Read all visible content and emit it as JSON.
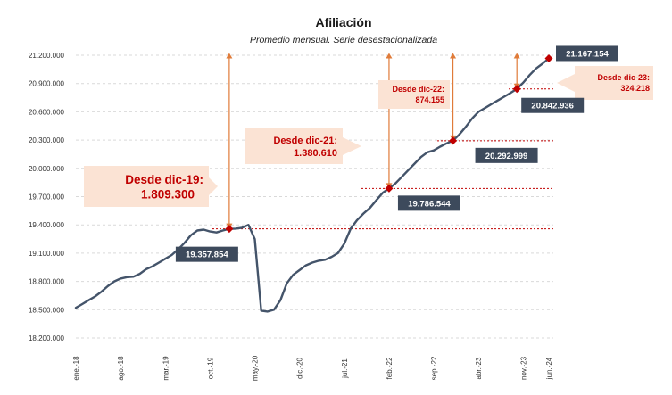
{
  "chart_data": {
    "type": "line",
    "title": "Afiliación",
    "subtitle": "Promedio mensual. Serie desestacionalizada",
    "ylim": [
      18200000,
      21200000
    ],
    "y_ticks": [
      "18.200.000",
      "18.500.000",
      "18.800.000",
      "19.100.000",
      "19.400.000",
      "19.700.000",
      "20.000.000",
      "20.300.000",
      "20.600.000",
      "20.900.000",
      "21.200.000"
    ],
    "x_ticks": [
      "ene.-18",
      "ago.-18",
      "mar.-19",
      "oct.-19",
      "may.-20",
      "dic.-20",
      "jul.-21",
      "feb.-22",
      "sep.-22",
      "abr.-23",
      "nov.-23",
      "jun.-24"
    ],
    "grid": true,
    "series": [
      {
        "values": [
          18520000,
          18560000,
          18600000,
          18640000,
          18690000,
          18750000,
          18800000,
          18830000,
          18845000,
          18850000,
          18880000,
          18930000,
          18960000,
          19000000,
          19040000,
          19080000,
          19140000,
          19210000,
          19290000,
          19340000,
          19350000,
          19330000,
          19320000,
          19340000,
          19357854,
          19360000,
          19370000,
          19400000,
          19250000,
          18490000,
          18480000,
          18500000,
          18600000,
          18780000,
          18870000,
          18920000,
          18970000,
          19000000,
          19020000,
          19030000,
          19060000,
          19100000,
          19200000,
          19360000,
          19450000,
          19520000,
          19580000,
          19660000,
          19740000,
          19786544,
          19840000,
          19910000,
          19980000,
          20050000,
          20120000,
          20170000,
          20190000,
          20230000,
          20265000,
          20292999,
          20360000,
          20440000,
          20530000,
          20600000,
          20640000,
          20680000,
          20720000,
          20760000,
          20800000,
          20842936,
          20910000,
          20990000,
          21060000,
          21110000,
          21167154
        ]
      }
    ],
    "highlights": [
      {
        "label": "19.357.854",
        "index": 24,
        "value": 19357854
      },
      {
        "label": "19.786.544",
        "index": 49,
        "value": 19786544
      },
      {
        "label": "20.292.999",
        "index": 59,
        "value": 20292999
      },
      {
        "label": "20.842.936",
        "index": 69,
        "value": 20842936
      },
      {
        "label": "21.167.154",
        "index": 74,
        "value": 21167154
      }
    ],
    "annotations": [
      {
        "line1": "Desde dic-19:",
        "line2": "1.809.300"
      },
      {
        "line1": "Desde dic-21:",
        "line2": "1.380.610"
      },
      {
        "line1": "Desde dic-22:",
        "line2": "874.155"
      },
      {
        "line1": "Desde dic-23:",
        "line2": "324.218"
      }
    ],
    "colors": {
      "series": "#44546a",
      "marker": "#c00000",
      "arrow": "#e07b39",
      "note_bg": "#fbe3d4",
      "label_bg": "#3d4a5c"
    }
  }
}
